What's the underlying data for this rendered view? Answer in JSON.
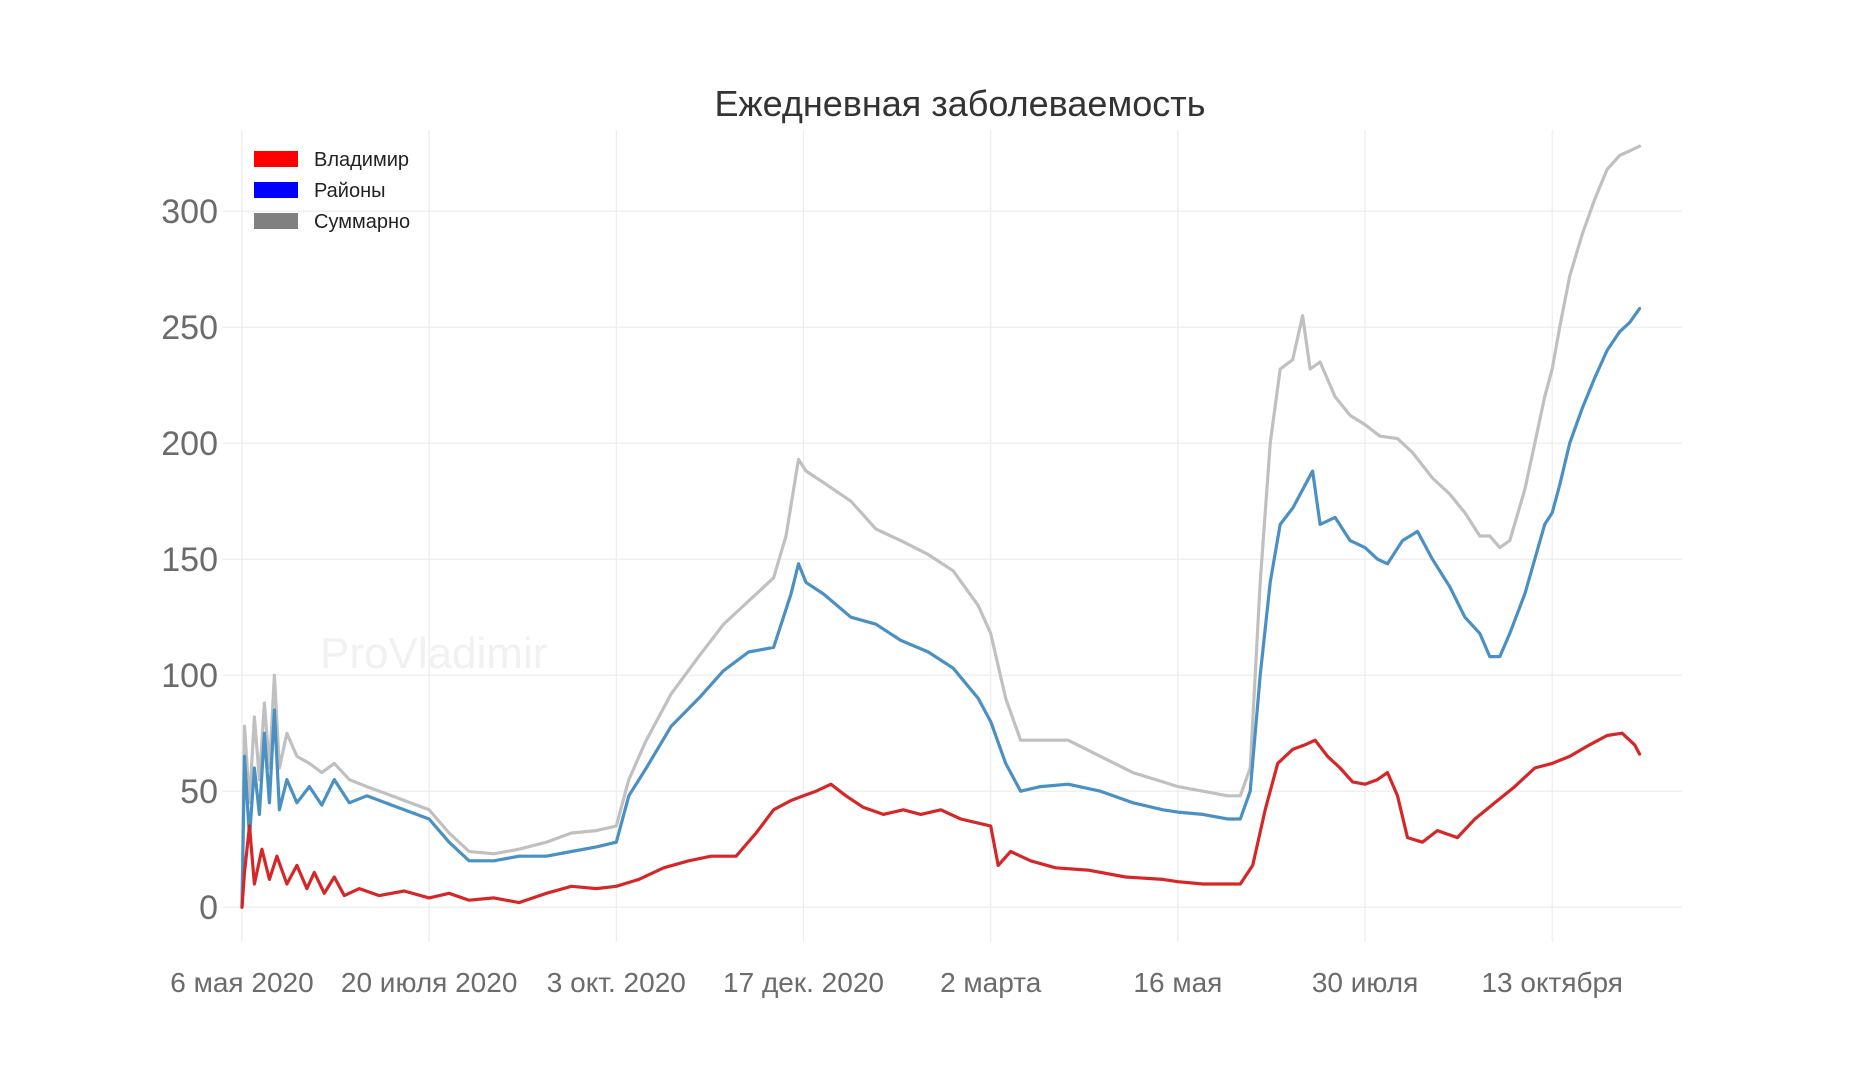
{
  "chart_data": {
    "type": "line",
    "title": "Ежедневная заболеваемость",
    "xlabel": "",
    "ylabel": "",
    "watermark": "ProVladimir",
    "x_tick_labels": [
      "6 мая 2020",
      "20 июля 2020",
      "3 окт. 2020",
      "17 дек. 2020",
      "2 марта",
      "16 мая",
      "30 июля",
      "13 октября"
    ],
    "x_tick_dates": [
      "2020-05-06",
      "2020-07-20",
      "2020-10-03",
      "2020-12-17",
      "2021-03-02",
      "2021-05-16",
      "2021-07-30",
      "2021-10-13"
    ],
    "xlim": [
      "2020-04-28",
      "2021-12-04"
    ],
    "y_ticks": [
      0,
      50,
      100,
      150,
      200,
      250,
      300
    ],
    "ylim": [
      -15,
      335
    ],
    "grid": true,
    "legend_position": "top-left",
    "series": [
      {
        "name": "Владимир",
        "legend_color": "#ff0000",
        "line_color": "#d62728",
        "points": [
          [
            "2020-05-06",
            0
          ],
          [
            "2020-05-07",
            15
          ],
          [
            "2020-05-09",
            35
          ],
          [
            "2020-05-11",
            10
          ],
          [
            "2020-05-14",
            25
          ],
          [
            "2020-05-17",
            12
          ],
          [
            "2020-05-20",
            22
          ],
          [
            "2020-05-24",
            10
          ],
          [
            "2020-05-28",
            18
          ],
          [
            "2020-06-01",
            8
          ],
          [
            "2020-06-04",
            15
          ],
          [
            "2020-06-08",
            6
          ],
          [
            "2020-06-12",
            13
          ],
          [
            "2020-06-16",
            5
          ],
          [
            "2020-06-22",
            8
          ],
          [
            "2020-06-30",
            5
          ],
          [
            "2020-07-10",
            7
          ],
          [
            "2020-07-20",
            4
          ],
          [
            "2020-07-28",
            6
          ],
          [
            "2020-08-05",
            3
          ],
          [
            "2020-08-15",
            4
          ],
          [
            "2020-08-25",
            2
          ],
          [
            "2020-09-05",
            6
          ],
          [
            "2020-09-15",
            9
          ],
          [
            "2020-09-25",
            8
          ],
          [
            "2020-10-03",
            9
          ],
          [
            "2020-10-12",
            12
          ],
          [
            "2020-10-22",
            17
          ],
          [
            "2020-11-01",
            20
          ],
          [
            "2020-11-10",
            22
          ],
          [
            "2020-11-20",
            22
          ],
          [
            "2020-11-28",
            32
          ],
          [
            "2020-12-05",
            42
          ],
          [
            "2020-12-12",
            46
          ],
          [
            "2020-12-17",
            48
          ],
          [
            "2020-12-22",
            50
          ],
          [
            "2020-12-28",
            53
          ],
          [
            "2021-01-03",
            48
          ],
          [
            "2021-01-10",
            43
          ],
          [
            "2021-01-18",
            40
          ],
          [
            "2021-01-26",
            42
          ],
          [
            "2021-02-02",
            40
          ],
          [
            "2021-02-10",
            42
          ],
          [
            "2021-02-18",
            38
          ],
          [
            "2021-02-26",
            36
          ],
          [
            "2021-03-02",
            35
          ],
          [
            "2021-03-05",
            18
          ],
          [
            "2021-03-10",
            24
          ],
          [
            "2021-03-18",
            20
          ],
          [
            "2021-03-28",
            17
          ],
          [
            "2021-04-10",
            16
          ],
          [
            "2021-04-25",
            13
          ],
          [
            "2021-05-10",
            12
          ],
          [
            "2021-05-16",
            11
          ],
          [
            "2021-05-26",
            10
          ],
          [
            "2021-06-05",
            10
          ],
          [
            "2021-06-10",
            10
          ],
          [
            "2021-06-15",
            18
          ],
          [
            "2021-06-20",
            42
          ],
          [
            "2021-06-25",
            62
          ],
          [
            "2021-07-01",
            68
          ],
          [
            "2021-07-06",
            70
          ],
          [
            "2021-07-10",
            72
          ],
          [
            "2021-07-15",
            65
          ],
          [
            "2021-07-20",
            60
          ],
          [
            "2021-07-25",
            54
          ],
          [
            "2021-07-30",
            53
          ],
          [
            "2021-08-04",
            55
          ],
          [
            "2021-08-08",
            58
          ],
          [
            "2021-08-12",
            48
          ],
          [
            "2021-08-16",
            30
          ],
          [
            "2021-08-22",
            28
          ],
          [
            "2021-08-28",
            33
          ],
          [
            "2021-09-05",
            30
          ],
          [
            "2021-09-12",
            38
          ],
          [
            "2021-09-20",
            45
          ],
          [
            "2021-09-28",
            52
          ],
          [
            "2021-10-06",
            60
          ],
          [
            "2021-10-13",
            62
          ],
          [
            "2021-10-20",
            65
          ],
          [
            "2021-10-28",
            70
          ],
          [
            "2021-11-04",
            74
          ],
          [
            "2021-11-10",
            75
          ],
          [
            "2021-11-15",
            70
          ],
          [
            "2021-11-17",
            66
          ]
        ]
      },
      {
        "name": "Районы",
        "legend_color": "#0000ff",
        "line_color": "#4a90c2",
        "points": [
          [
            "2020-05-06",
            0
          ],
          [
            "2020-05-07",
            65
          ],
          [
            "2020-05-09",
            30
          ],
          [
            "2020-05-11",
            60
          ],
          [
            "2020-05-13",
            40
          ],
          [
            "2020-05-15",
            75
          ],
          [
            "2020-05-17",
            45
          ],
          [
            "2020-05-19",
            85
          ],
          [
            "2020-05-21",
            42
          ],
          [
            "2020-05-24",
            55
          ],
          [
            "2020-05-28",
            45
          ],
          [
            "2020-06-02",
            52
          ],
          [
            "2020-06-07",
            44
          ],
          [
            "2020-06-12",
            55
          ],
          [
            "2020-06-18",
            45
          ],
          [
            "2020-06-25",
            48
          ],
          [
            "2020-07-05",
            44
          ],
          [
            "2020-07-15",
            40
          ],
          [
            "2020-07-20",
            38
          ],
          [
            "2020-07-28",
            28
          ],
          [
            "2020-08-05",
            20
          ],
          [
            "2020-08-15",
            20
          ],
          [
            "2020-08-25",
            22
          ],
          [
            "2020-09-05",
            22
          ],
          [
            "2020-09-15",
            24
          ],
          [
            "2020-09-25",
            26
          ],
          [
            "2020-10-03",
            28
          ],
          [
            "2020-10-08",
            48
          ],
          [
            "2020-10-15",
            60
          ],
          [
            "2020-10-25",
            78
          ],
          [
            "2020-11-05",
            90
          ],
          [
            "2020-11-15",
            102
          ],
          [
            "2020-11-25",
            110
          ],
          [
            "2020-12-05",
            112
          ],
          [
            "2020-12-12",
            135
          ],
          [
            "2020-12-15",
            148
          ],
          [
            "2020-12-18",
            140
          ],
          [
            "2020-12-25",
            135
          ],
          [
            "2021-01-05",
            125
          ],
          [
            "2021-01-15",
            122
          ],
          [
            "2021-01-25",
            115
          ],
          [
            "2021-02-05",
            110
          ],
          [
            "2021-02-15",
            103
          ],
          [
            "2021-02-25",
            90
          ],
          [
            "2021-03-02",
            80
          ],
          [
            "2021-03-08",
            62
          ],
          [
            "2021-03-14",
            50
          ],
          [
            "2021-03-22",
            52
          ],
          [
            "2021-04-02",
            53
          ],
          [
            "2021-04-15",
            50
          ],
          [
            "2021-04-28",
            45
          ],
          [
            "2021-05-10",
            42
          ],
          [
            "2021-05-16",
            41
          ],
          [
            "2021-05-26",
            40
          ],
          [
            "2021-06-05",
            38
          ],
          [
            "2021-06-10",
            38
          ],
          [
            "2021-06-14",
            50
          ],
          [
            "2021-06-18",
            100
          ],
          [
            "2021-06-22",
            140
          ],
          [
            "2021-06-26",
            165
          ],
          [
            "2021-07-01",
            172
          ],
          [
            "2021-07-06",
            182
          ],
          [
            "2021-07-09",
            188
          ],
          [
            "2021-07-12",
            165
          ],
          [
            "2021-07-18",
            168
          ],
          [
            "2021-07-24",
            158
          ],
          [
            "2021-07-30",
            155
          ],
          [
            "2021-08-04",
            150
          ],
          [
            "2021-08-08",
            148
          ],
          [
            "2021-08-14",
            158
          ],
          [
            "2021-08-20",
            162
          ],
          [
            "2021-08-26",
            150
          ],
          [
            "2021-09-02",
            138
          ],
          [
            "2021-09-08",
            125
          ],
          [
            "2021-09-14",
            118
          ],
          [
            "2021-09-18",
            108
          ],
          [
            "2021-09-22",
            108
          ],
          [
            "2021-09-26",
            118
          ],
          [
            "2021-10-02",
            135
          ],
          [
            "2021-10-06",
            150
          ],
          [
            "2021-10-10",
            165
          ],
          [
            "2021-10-13",
            170
          ],
          [
            "2021-10-16",
            182
          ],
          [
            "2021-10-20",
            200
          ],
          [
            "2021-10-25",
            215
          ],
          [
            "2021-10-30",
            228
          ],
          [
            "2021-11-04",
            240
          ],
          [
            "2021-11-09",
            248
          ],
          [
            "2021-11-13",
            252
          ],
          [
            "2021-11-17",
            258
          ]
        ]
      },
      {
        "name": "Суммарно",
        "legend_color": "#808080",
        "line_color": "#c0c0c0",
        "points": [
          [
            "2020-05-06",
            0
          ],
          [
            "2020-05-07",
            78
          ],
          [
            "2020-05-09",
            45
          ],
          [
            "2020-05-11",
            82
          ],
          [
            "2020-05-13",
            55
          ],
          [
            "2020-05-15",
            88
          ],
          [
            "2020-05-17",
            60
          ],
          [
            "2020-05-19",
            100
          ],
          [
            "2020-05-21",
            60
          ],
          [
            "2020-05-24",
            75
          ],
          [
            "2020-05-28",
            65
          ],
          [
            "2020-06-02",
            62
          ],
          [
            "2020-06-07",
            58
          ],
          [
            "2020-06-12",
            62
          ],
          [
            "2020-06-18",
            55
          ],
          [
            "2020-06-25",
            52
          ],
          [
            "2020-07-05",
            48
          ],
          [
            "2020-07-15",
            44
          ],
          [
            "2020-07-20",
            42
          ],
          [
            "2020-07-28",
            32
          ],
          [
            "2020-08-05",
            24
          ],
          [
            "2020-08-15",
            23
          ],
          [
            "2020-08-25",
            25
          ],
          [
            "2020-09-05",
            28
          ],
          [
            "2020-09-15",
            32
          ],
          [
            "2020-09-25",
            33
          ],
          [
            "2020-10-03",
            35
          ],
          [
            "2020-10-08",
            55
          ],
          [
            "2020-10-15",
            72
          ],
          [
            "2020-10-25",
            92
          ],
          [
            "2020-11-05",
            108
          ],
          [
            "2020-11-15",
            122
          ],
          [
            "2020-11-25",
            132
          ],
          [
            "2020-12-05",
            142
          ],
          [
            "2020-12-10",
            160
          ],
          [
            "2020-12-15",
            193
          ],
          [
            "2020-12-18",
            188
          ],
          [
            "2020-12-25",
            183
          ],
          [
            "2021-01-05",
            175
          ],
          [
            "2021-01-15",
            163
          ],
          [
            "2021-01-25",
            158
          ],
          [
            "2021-02-05",
            152
          ],
          [
            "2021-02-15",
            145
          ],
          [
            "2021-02-25",
            130
          ],
          [
            "2021-03-02",
            118
          ],
          [
            "2021-03-08",
            90
          ],
          [
            "2021-03-14",
            72
          ],
          [
            "2021-03-22",
            72
          ],
          [
            "2021-04-02",
            72
          ],
          [
            "2021-04-15",
            65
          ],
          [
            "2021-04-28",
            58
          ],
          [
            "2021-05-10",
            54
          ],
          [
            "2021-05-16",
            52
          ],
          [
            "2021-05-26",
            50
          ],
          [
            "2021-06-05",
            48
          ],
          [
            "2021-06-10",
            48
          ],
          [
            "2021-06-14",
            60
          ],
          [
            "2021-06-18",
            140
          ],
          [
            "2021-06-22",
            200
          ],
          [
            "2021-06-26",
            232
          ],
          [
            "2021-07-01",
            236
          ],
          [
            "2021-07-05",
            255
          ],
          [
            "2021-07-08",
            232
          ],
          [
            "2021-07-12",
            235
          ],
          [
            "2021-07-18",
            220
          ],
          [
            "2021-07-24",
            212
          ],
          [
            "2021-07-30",
            208
          ],
          [
            "2021-08-05",
            203
          ],
          [
            "2021-08-12",
            202
          ],
          [
            "2021-08-18",
            196
          ],
          [
            "2021-08-26",
            185
          ],
          [
            "2021-09-02",
            178
          ],
          [
            "2021-09-08",
            170
          ],
          [
            "2021-09-14",
            160
          ],
          [
            "2021-09-18",
            160
          ],
          [
            "2021-09-22",
            155
          ],
          [
            "2021-09-26",
            158
          ],
          [
            "2021-10-02",
            180
          ],
          [
            "2021-10-06",
            200
          ],
          [
            "2021-10-10",
            220
          ],
          [
            "2021-10-13",
            232
          ],
          [
            "2021-10-16",
            250
          ],
          [
            "2021-10-20",
            272
          ],
          [
            "2021-10-25",
            290
          ],
          [
            "2021-10-30",
            305
          ],
          [
            "2021-11-04",
            318
          ],
          [
            "2021-11-09",
            324
          ],
          [
            "2021-11-13",
            326
          ],
          [
            "2021-11-17",
            328
          ]
        ]
      }
    ]
  }
}
